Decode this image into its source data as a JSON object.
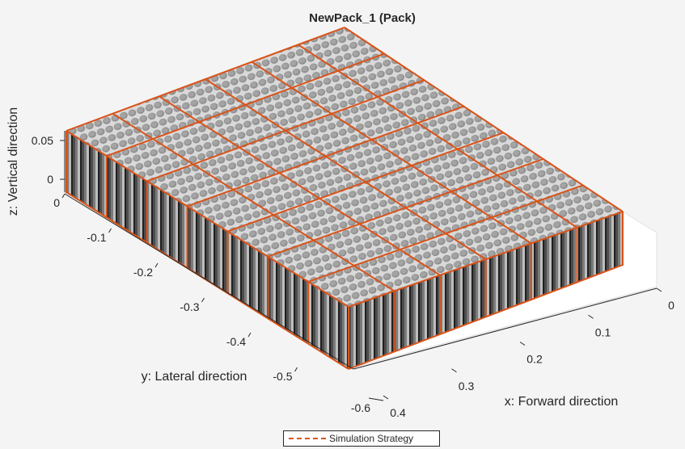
{
  "chart_data": {
    "type": "3d-surface",
    "title": "NewPack_1 (Pack)",
    "xlabel": "x: Forward direction",
    "ylabel": "y: Lateral direction",
    "zlabel": "z: Vertical direction",
    "xticks": [
      "0",
      "0.1",
      "0.2",
      "0.3",
      "0.4"
    ],
    "yticks": [
      "0",
      "-0.1",
      "-0.2",
      "-0.3",
      "-0.4",
      "-0.5",
      "-0.6"
    ],
    "zticks": [
      "0",
      "0.05"
    ],
    "modules_x": 6,
    "modules_y": 7,
    "legend": [
      {
        "label": "Simulation Strategy",
        "style": "dashed",
        "color": "#d95319"
      }
    ],
    "grid": false
  },
  "colors": {
    "module_outline": "#d95319",
    "cell_top": "#8c8c8c",
    "cell_side": "#5a5a5a",
    "background": "#f4f4f4",
    "axes_pane": "#ffffff"
  }
}
